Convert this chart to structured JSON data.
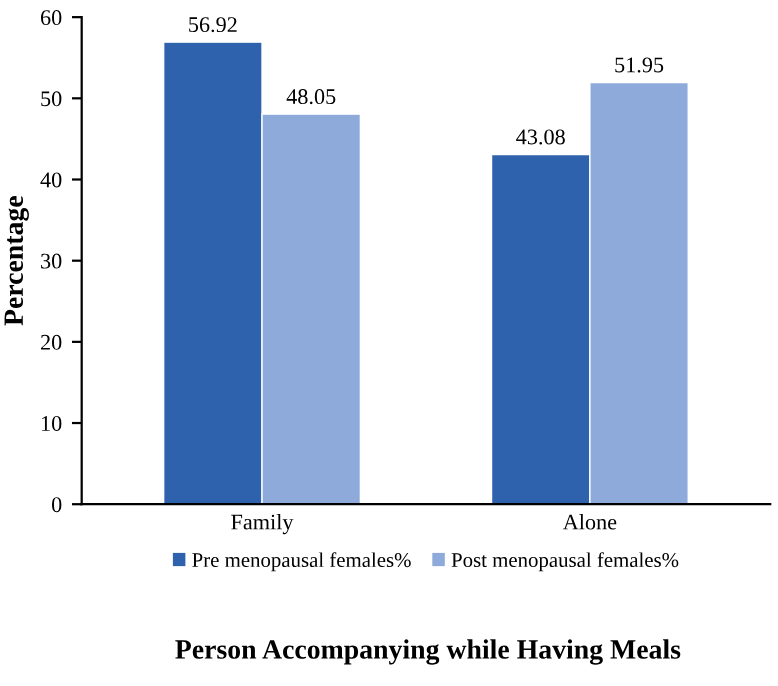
{
  "chart_data": {
    "type": "bar",
    "xlabel": "Person Accompanying while Having Meals",
    "ylabel": "Percentage",
    "categories": [
      "Family",
      "Alone"
    ],
    "series": [
      {
        "name": "Pre menopausal females%",
        "color": "#2f62ad",
        "values": [
          56.92,
          43.08
        ]
      },
      {
        "name": "Post menopausal females%",
        "color": "#8eaadb",
        "values": [
          48.05,
          51.95
        ]
      }
    ],
    "ylim": [
      0,
      60
    ],
    "yticks": [
      0,
      10,
      20,
      30,
      40,
      50,
      60
    ],
    "data_labels": true,
    "grid": false,
    "legend": "bottom"
  }
}
